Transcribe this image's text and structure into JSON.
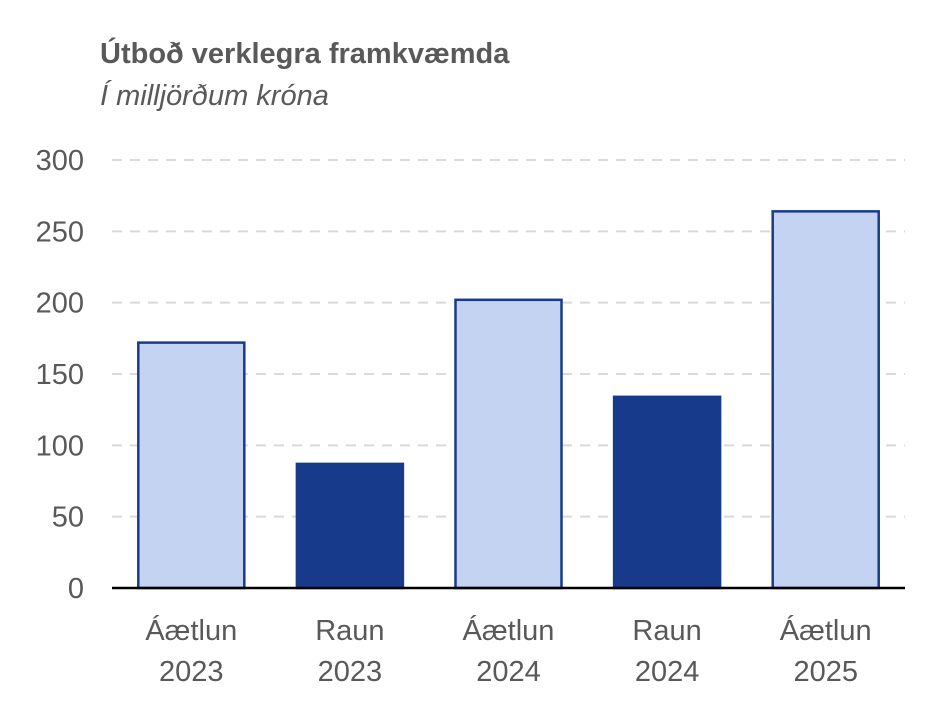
{
  "chart_data": {
    "type": "bar",
    "title": "Útboð verklegra framkvæmda",
    "subtitle": "Í milljörðum króna",
    "categories": [
      [
        "Áætlun",
        "2023"
      ],
      [
        "Raun",
        "2023"
      ],
      [
        "Áætlun",
        "2024"
      ],
      [
        "Raun",
        "2024"
      ],
      [
        "Áætlun",
        "2025"
      ]
    ],
    "values": [
      172,
      87,
      202,
      134,
      264
    ],
    "bar_kinds": [
      "plan",
      "actual",
      "plan",
      "actual",
      "plan"
    ],
    "ylim": [
      0,
      300
    ],
    "yticks": [
      0,
      50,
      100,
      150,
      200,
      250,
      300
    ],
    "grid": true,
    "colors": {
      "plan_fill": "#c5d3f3",
      "plan_stroke": "#1a3a8a",
      "actual_fill": "#173a8b",
      "grid": "#d9d9d9",
      "axis": "#000000",
      "text": "#595959"
    }
  }
}
